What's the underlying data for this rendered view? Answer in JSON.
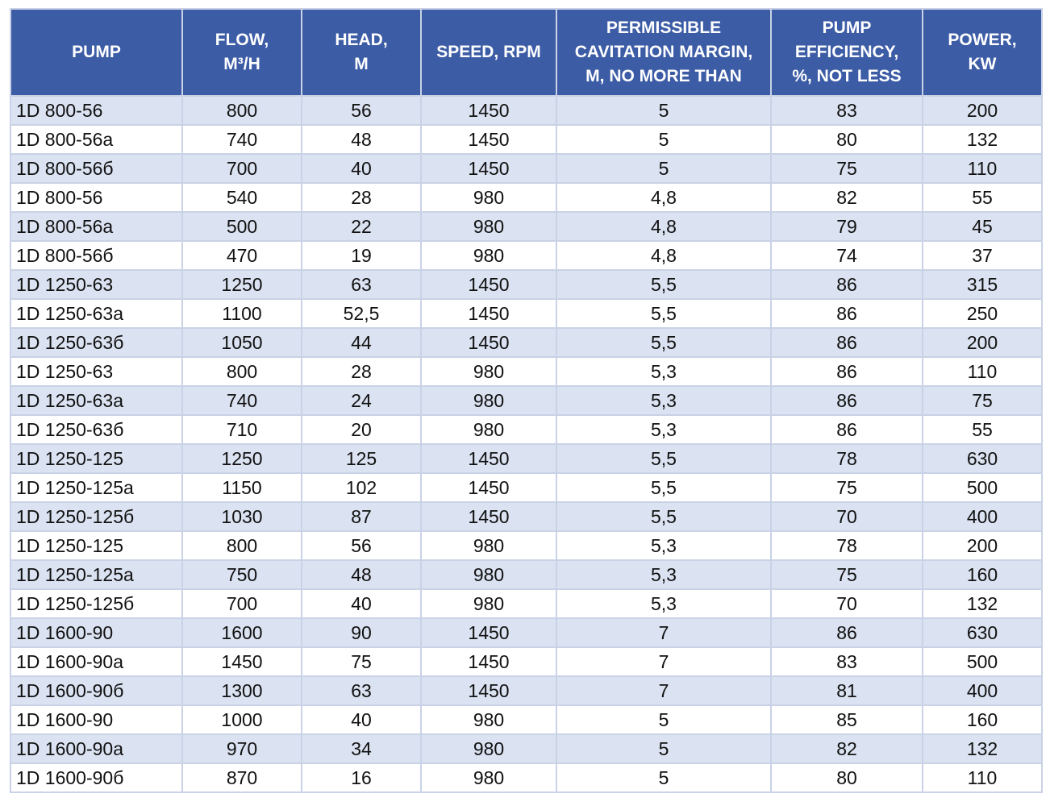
{
  "table": {
    "header": [
      [
        "PUMP"
      ],
      [
        "FLOW,",
        "M³/H"
      ],
      [
        "HEAD,",
        "M"
      ],
      [
        "SPEED, RPM"
      ],
      [
        "PERMISSIBLE",
        "CAVITATION MARGIN,",
        "M, NO MORE THAN"
      ],
      [
        "PUMP",
        "EFFICIENCY,",
        "%, NOT LESS"
      ],
      [
        "POWER,",
        "KW"
      ]
    ],
    "rows": [
      [
        "1D 800-56",
        "800",
        "56",
        "1450",
        "5",
        "83",
        "200"
      ],
      [
        "1D 800-56a",
        "740",
        "48",
        "1450",
        "5",
        "80",
        "132"
      ],
      [
        "1D 800-56б",
        "700",
        "40",
        "1450",
        "5",
        "75",
        "110"
      ],
      [
        "1D 800-56",
        "540",
        "28",
        "980",
        "4,8",
        "82",
        "55"
      ],
      [
        "1D 800-56a",
        "500",
        "22",
        "980",
        "4,8",
        "79",
        "45"
      ],
      [
        "1D 800-56б",
        "470",
        "19",
        "980",
        "4,8",
        "74",
        "37"
      ],
      [
        "1D 1250-63",
        "1250",
        "63",
        "1450",
        "5,5",
        "86",
        "315"
      ],
      [
        "1D 1250-63a",
        "1100",
        "52,5",
        "1450",
        "5,5",
        "86",
        "250"
      ],
      [
        "1D 1250-63б",
        "1050",
        "44",
        "1450",
        "5,5",
        "86",
        "200"
      ],
      [
        "1D 1250-63",
        "800",
        "28",
        "980",
        "5,3",
        "86",
        "110"
      ],
      [
        "1D 1250-63a",
        "740",
        "24",
        "980",
        "5,3",
        "86",
        "75"
      ],
      [
        "1D 1250-63б",
        "710",
        "20",
        "980",
        "5,3",
        "86",
        "55"
      ],
      [
        "1D 1250-125",
        "1250",
        "125",
        "1450",
        "5,5",
        "78",
        "630"
      ],
      [
        "1D 1250-125a",
        "1150",
        "102",
        "1450",
        "5,5",
        "75",
        "500"
      ],
      [
        "1D 1250-125б",
        "1030",
        "87",
        "1450",
        "5,5",
        "70",
        "400"
      ],
      [
        "1D 1250-125",
        "800",
        "56",
        "980",
        "5,3",
        "78",
        "200"
      ],
      [
        "1D 1250-125a",
        "750",
        "48",
        "980",
        "5,3",
        "75",
        "160"
      ],
      [
        "1D 1250-125б",
        "700",
        "40",
        "980",
        "5,3",
        "70",
        "132"
      ],
      [
        "1D 1600-90",
        "1600",
        "90",
        "1450",
        "7",
        "86",
        "630"
      ],
      [
        "1D 1600-90a",
        "1450",
        "75",
        "1450",
        "7",
        "83",
        "500"
      ],
      [
        "1D 1600-90б",
        "1300",
        "63",
        "1450",
        "7",
        "81",
        "400"
      ],
      [
        "1D 1600-90",
        "1000",
        "40",
        "980",
        "5",
        "85",
        "160"
      ],
      [
        "1D 1600-90a",
        "970",
        "34",
        "980",
        "5",
        "82",
        "132"
      ],
      [
        "1D 1600-90б",
        "870",
        "16",
        "980",
        "5",
        "80",
        "110"
      ]
    ]
  }
}
